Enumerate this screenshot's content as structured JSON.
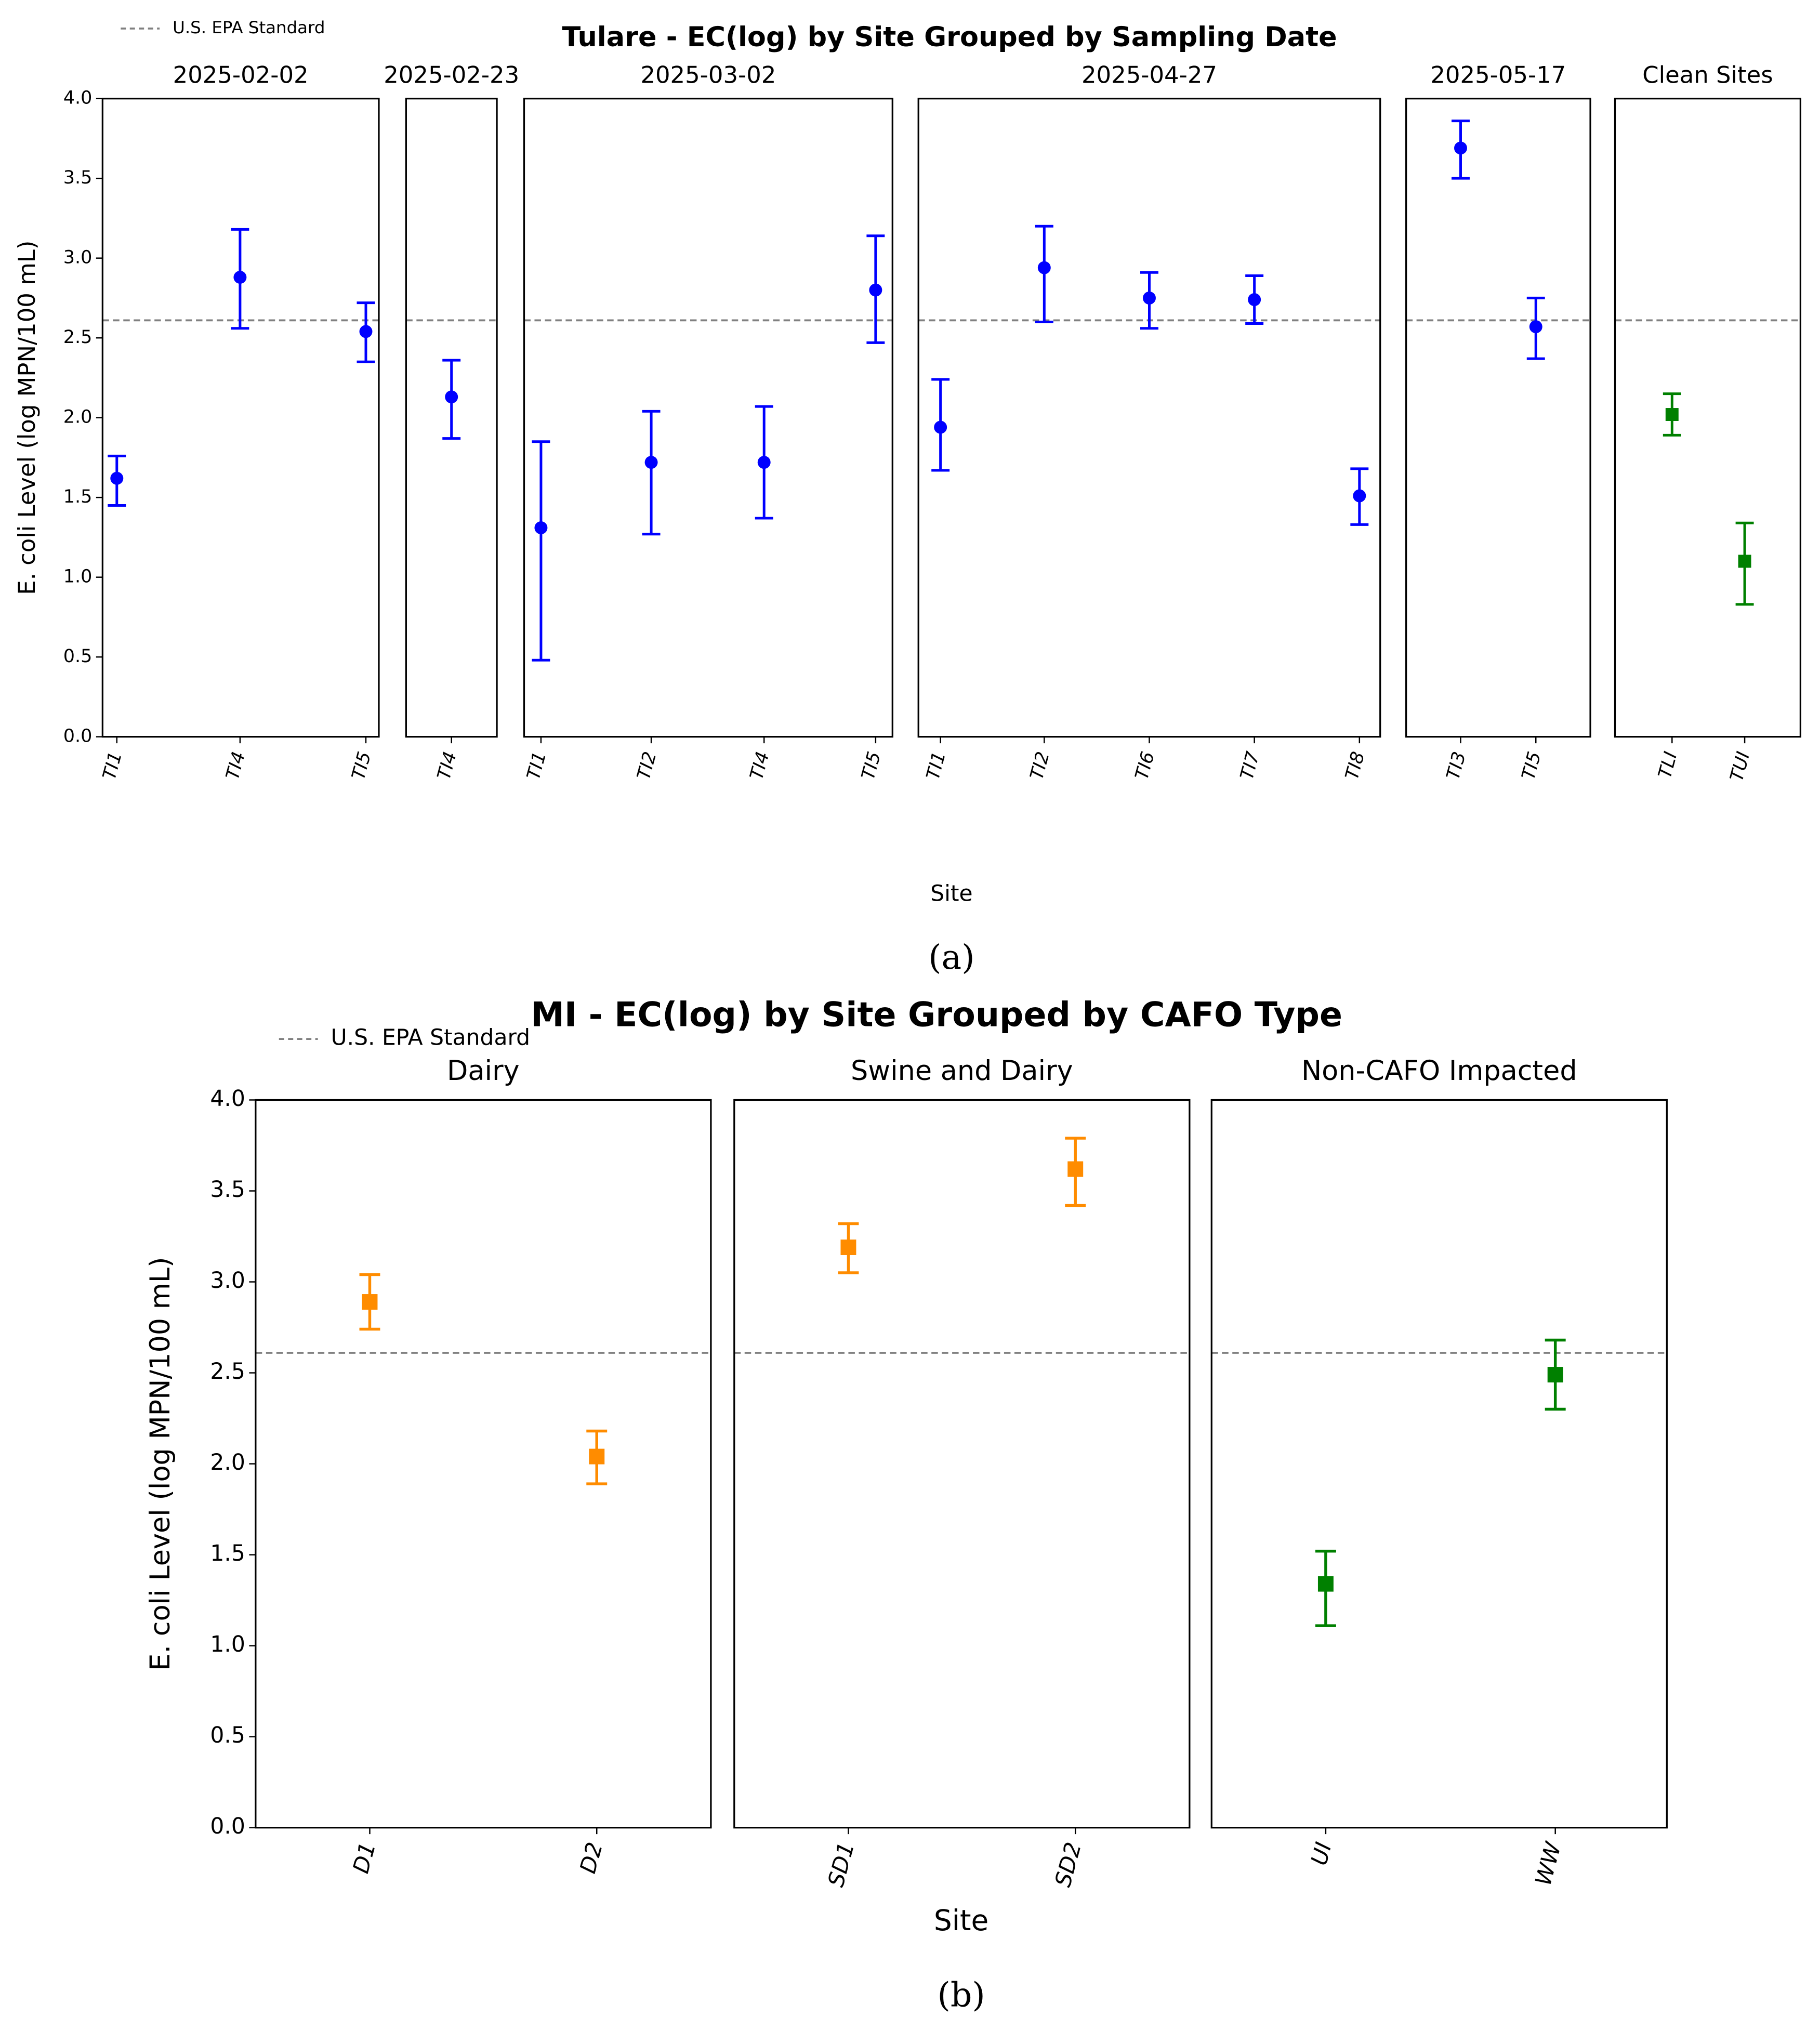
{
  "chart_data": [
    {
      "type": "errorbar",
      "title": "Tulare - EC(log) by Site Grouped by Sampling Date",
      "y_label": "E. coli Level (log MPN/100 mL)",
      "x_label": "Site",
      "caption": "(a)",
      "ylim": [
        0,
        4
      ],
      "yticks": [
        {
          "value": 0,
          "label": "0.0"
        },
        {
          "value": 0.5,
          "label": "0.5"
        },
        {
          "value": 1,
          "label": "1.0"
        },
        {
          "value": 1.5,
          "label": "1.5"
        },
        {
          "value": 2,
          "label": "2.0"
        },
        {
          "value": 2.5,
          "label": "2.5"
        },
        {
          "value": 3,
          "label": "3.0"
        },
        {
          "value": 3.5,
          "label": "3.5"
        },
        {
          "value": 4,
          "label": "4.0"
        }
      ],
      "grid": false,
      "legend_position": "upper-left",
      "reference_line": {
        "name": "U.S. EPA Standard",
        "value": 2.61,
        "color": "#808080"
      },
      "panels": [
        {
          "title": "2025-02-02",
          "color": "#0000ff",
          "marker": "circle",
          "categories": [
            "TI1",
            "TI4",
            "TI5"
          ],
          "values": [
            1.62,
            2.88,
            2.54
          ],
          "lower": [
            1.45,
            2.56,
            2.35
          ],
          "upper": [
            1.76,
            3.18,
            2.72
          ]
        },
        {
          "title": "2025-02-23",
          "color": "#0000ff",
          "marker": "circle",
          "categories": [
            "TI4"
          ],
          "values": [
            2.13
          ],
          "lower": [
            1.87
          ],
          "upper": [
            2.36
          ]
        },
        {
          "title": "2025-03-02",
          "color": "#0000ff",
          "marker": "circle",
          "categories": [
            "TI1",
            "TI2",
            "TI4",
            "TI5"
          ],
          "values": [
            1.31,
            1.72,
            1.72,
            2.8
          ],
          "lower": [
            0.48,
            1.27,
            1.37,
            2.47
          ],
          "upper": [
            1.85,
            2.04,
            2.07,
            3.14
          ]
        },
        {
          "title": "2025-04-27",
          "color": "#0000ff",
          "marker": "circle",
          "categories": [
            "TI1",
            "TI2",
            "TI6",
            "TI7",
            "TI8"
          ],
          "values": [
            1.94,
            2.94,
            2.75,
            2.74,
            1.51
          ],
          "lower": [
            1.67,
            2.6,
            2.56,
            2.59,
            1.33
          ],
          "upper": [
            2.24,
            3.2,
            2.91,
            2.89,
            1.68
          ]
        },
        {
          "title": "2025-05-17",
          "color": "#0000ff",
          "marker": "circle",
          "categories": [
            "TI3",
            "TI5"
          ],
          "values": [
            3.69,
            2.57
          ],
          "lower": [
            3.5,
            2.37
          ],
          "upper": [
            3.86,
            2.75
          ]
        },
        {
          "title": "Clean Sites",
          "color": "#008000",
          "marker": "square",
          "categories": [
            "TLI",
            "TUI"
          ],
          "values": [
            2.02,
            1.1
          ],
          "lower": [
            1.89,
            0.83
          ],
          "upper": [
            2.15,
            1.34
          ]
        }
      ]
    },
    {
      "type": "errorbar",
      "title": "MI - EC(log) by Site Grouped by CAFO Type",
      "y_label": "E. coli Level (log MPN/100 mL)",
      "x_label": "Site",
      "caption": "(b)",
      "ylim": [
        0,
        4
      ],
      "yticks": [
        {
          "value": 0,
          "label": "0.0"
        },
        {
          "value": 0.5,
          "label": "0.5"
        },
        {
          "value": 1,
          "label": "1.0"
        },
        {
          "value": 1.5,
          "label": "1.5"
        },
        {
          "value": 2,
          "label": "2.0"
        },
        {
          "value": 2.5,
          "label": "2.5"
        },
        {
          "value": 3,
          "label": "3.0"
        },
        {
          "value": 3.5,
          "label": "3.5"
        },
        {
          "value": 4,
          "label": "4.0"
        }
      ],
      "grid": false,
      "legend_position": "upper-left",
      "reference_line": {
        "name": "U.S. EPA Standard",
        "value": 2.61,
        "color": "#808080"
      },
      "panels": [
        {
          "title": "Dairy",
          "color": "#ff8c00",
          "marker": "square",
          "categories": [
            "D1",
            "D2"
          ],
          "values": [
            2.89,
            2.04
          ],
          "lower": [
            2.74,
            1.89
          ],
          "upper": [
            3.04,
            2.18
          ]
        },
        {
          "title": "Swine and Dairy",
          "color": "#ff8c00",
          "marker": "square",
          "categories": [
            "SD1",
            "SD2"
          ],
          "values": [
            3.19,
            3.62
          ],
          "lower": [
            3.05,
            3.42
          ],
          "upper": [
            3.32,
            3.79
          ]
        },
        {
          "title": "Non-CAFO Impacted",
          "color": "#008000",
          "marker": "square",
          "categories": [
            "UI",
            "WW"
          ],
          "values": [
            1.34,
            2.49
          ],
          "lower": [
            1.11,
            2.3
          ],
          "upper": [
            1.52,
            2.68
          ]
        }
      ]
    }
  ]
}
